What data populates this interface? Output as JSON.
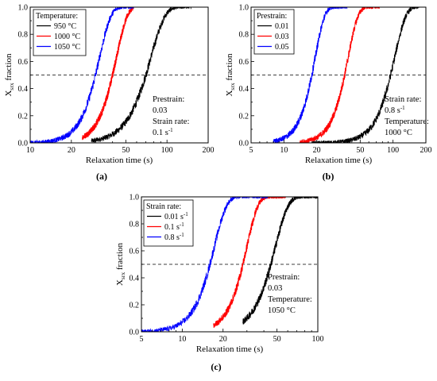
{
  "chart_data": [
    {
      "panel": "a",
      "type": "line",
      "panel_label": "(a)",
      "xlabel": "Relaxation time (s)",
      "ylabel": "X",
      "ylabel_sub": "srx",
      "ylabel_suffix": " fraction",
      "x_scale": "log",
      "xlim": [
        10,
        200
      ],
      "ylim": [
        0,
        1.0
      ],
      "x_ticks": [
        10,
        20,
        50,
        100,
        200
      ],
      "y_ticks": [
        "0.0",
        "0.2",
        "0.4",
        "0.6",
        "0.8",
        "1.0"
      ],
      "reference_line": {
        "y": 0.5,
        "style": "dashed"
      },
      "legend": {
        "title": "Temperature:",
        "position": "top-left"
      },
      "series": [
        {
          "name": "950 °C",
          "color": "#000000",
          "x50": 70,
          "k": 4.2,
          "x_start": 28,
          "x_end": 150
        },
        {
          "name": "1000 °C",
          "color": "#ff0000",
          "x50": 40,
          "k": 5.5,
          "x_start": 24,
          "x_end": 57
        },
        {
          "name": "1050 °C",
          "color": "#0000ff",
          "x50": 30,
          "k": 5.2,
          "x_start": 10,
          "x_end": 57
        }
      ],
      "annotations": [
        "Prestrain:",
        "0.03",
        "Strain rate:",
        "0.1 s",
        "-1"
      ]
    },
    {
      "panel": "b",
      "type": "line",
      "panel_label": "(b)",
      "xlabel": "Relaxation time (s)",
      "ylabel": "X",
      "ylabel_sub": "srx",
      "ylabel_suffix": " fraction",
      "x_scale": "log",
      "xlim": [
        5,
        200
      ],
      "ylim": [
        0,
        1.0
      ],
      "x_ticks": [
        5,
        10,
        20,
        50,
        100,
        200
      ],
      "y_ticks": [
        "0.0",
        "0.2",
        "0.4",
        "0.6",
        "0.8",
        "1.0"
      ],
      "reference_line": {
        "y": 0.5,
        "style": "dashed"
      },
      "legend": {
        "title": "Prestrain:",
        "position": "top-left"
      },
      "series": [
        {
          "name": "0.01",
          "color": "#000000",
          "x50": 95,
          "k": 4.2,
          "x_start": 18,
          "x_end": 175
        },
        {
          "name": "0.03",
          "color": "#ff0000",
          "x50": 36,
          "k": 4.8,
          "x_start": 14,
          "x_end": 75
        },
        {
          "name": "0.05",
          "color": "#0000ff",
          "x50": 18,
          "k": 5.0,
          "x_start": 8,
          "x_end": 38
        }
      ],
      "annotations": [
        "Strain rate:",
        "0.8 s",
        "-1",
        "Temperature:",
        "1000 °C"
      ]
    },
    {
      "panel": "c",
      "type": "line",
      "panel_label": "(c)",
      "xlabel": "Relaxation time (s)",
      "ylabel": "X",
      "ylabel_sub": "srx",
      "ylabel_suffix": " fraction",
      "x_scale": "log",
      "xlim": [
        5,
        100
      ],
      "ylim": [
        0,
        1.0
      ],
      "x_ticks": [
        5,
        10,
        20,
        50,
        100
      ],
      "y_ticks": [
        "0.0",
        "0.2",
        "0.4",
        "0.6",
        "0.8",
        "1.0"
      ],
      "reference_line": {
        "y": 0.5,
        "style": "dashed"
      },
      "legend": {
        "title": "Strain rate:",
        "position": "top-left"
      },
      "series": [
        {
          "name": "0.01 s",
          "name_sup": "-1",
          "color": "#000000",
          "x50": 45,
          "k": 4.6,
          "x_start": 28,
          "x_end": 100
        },
        {
          "name": "0.1 s",
          "name_sup": "-1",
          "color": "#ff0000",
          "x50": 28,
          "k": 5.3,
          "x_start": 17,
          "x_end": 58
        },
        {
          "name": "0.8 s",
          "name_sup": "-1",
          "color": "#0000ff",
          "x50": 16,
          "k": 4.8,
          "x_start": 5,
          "x_end": 43
        }
      ],
      "annotations": [
        "Prestrain:",
        "0.03",
        "Temperature:",
        "1050 °C"
      ]
    }
  ]
}
